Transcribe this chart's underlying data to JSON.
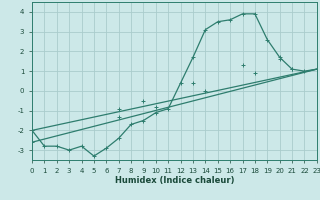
{
  "xlabel": "Humidex (Indice chaleur)",
  "bg_color": "#cce8e8",
  "grid_color": "#aacccc",
  "line_color": "#2e7d6e",
  "xlim": [
    0,
    23
  ],
  "ylim": [
    -3.5,
    4.5
  ],
  "xticks": [
    0,
    1,
    2,
    3,
    4,
    5,
    6,
    7,
    8,
    9,
    10,
    11,
    12,
    13,
    14,
    15,
    16,
    17,
    18,
    19,
    20,
    21,
    22,
    23
  ],
  "yticks": [
    -3,
    -2,
    -1,
    0,
    1,
    2,
    3,
    4
  ],
  "series1_x": [
    0,
    1,
    2,
    3,
    4,
    5,
    6,
    7,
    8,
    9,
    10,
    11,
    12,
    13,
    14,
    15,
    16,
    17,
    18,
    19,
    20,
    21,
    22,
    23
  ],
  "series1_y": [
    -2.0,
    -2.8,
    -2.8,
    -3.0,
    -2.8,
    -3.3,
    -2.9,
    -2.4,
    -1.7,
    -1.5,
    -1.1,
    -0.9,
    0.4,
    1.7,
    3.1,
    3.5,
    3.6,
    3.9,
    3.9,
    2.6,
    1.7,
    1.1,
    1.0,
    1.1
  ],
  "series2_x": [
    0,
    23
  ],
  "series2_y": [
    -2.0,
    1.1
  ],
  "series2_markers_x": [
    0,
    7,
    9,
    13,
    17,
    20,
    23
  ],
  "series2_markers_y": [
    -2.0,
    -0.9,
    -0.5,
    0.4,
    1.3,
    1.6,
    1.1
  ],
  "series3_x": [
    0,
    23
  ],
  "series3_y": [
    -2.6,
    1.1
  ],
  "series3_markers_x": [
    0,
    7,
    10,
    14,
    18,
    21,
    23
  ],
  "series3_markers_y": [
    -2.6,
    -1.3,
    -0.8,
    0.0,
    0.9,
    1.1,
    1.1
  ],
  "marker": "+"
}
